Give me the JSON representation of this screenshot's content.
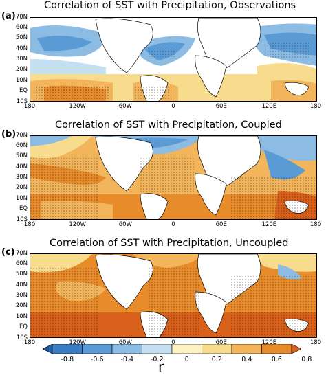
{
  "panels": [
    {
      "label": "(a)",
      "title": "Correlation of SST with Precipitation, Observations"
    },
    {
      "label": "(b)",
      "title": "Correlation of SST with Precipitation, Coupled"
    },
    {
      "label": "(c)",
      "title": "Correlation of SST with Precipitation, Uncoupled"
    }
  ],
  "lat_labels": [
    "70N",
    "60N",
    "50N",
    "40N",
    "30N",
    "20N",
    "10N",
    "EQ",
    "10S"
  ],
  "lon_labels": [
    "180",
    "120W",
    "60W",
    "0",
    "60E",
    "120E",
    "180"
  ],
  "colorbar": {
    "ticks": [
      "-0.8",
      "-0.6",
      "-0.4",
      "-0.2",
      "0",
      "0.2",
      "0.4",
      "0.6",
      "0.8"
    ],
    "label": "r",
    "colors": [
      "#1f5fa8",
      "#3b7dc4",
      "#5b9bd5",
      "#8cbce3",
      "#c4dff0",
      "#fdf3c2",
      "#f8dc8e",
      "#f2b55c",
      "#e88b2a",
      "#d9601a"
    ]
  }
}
